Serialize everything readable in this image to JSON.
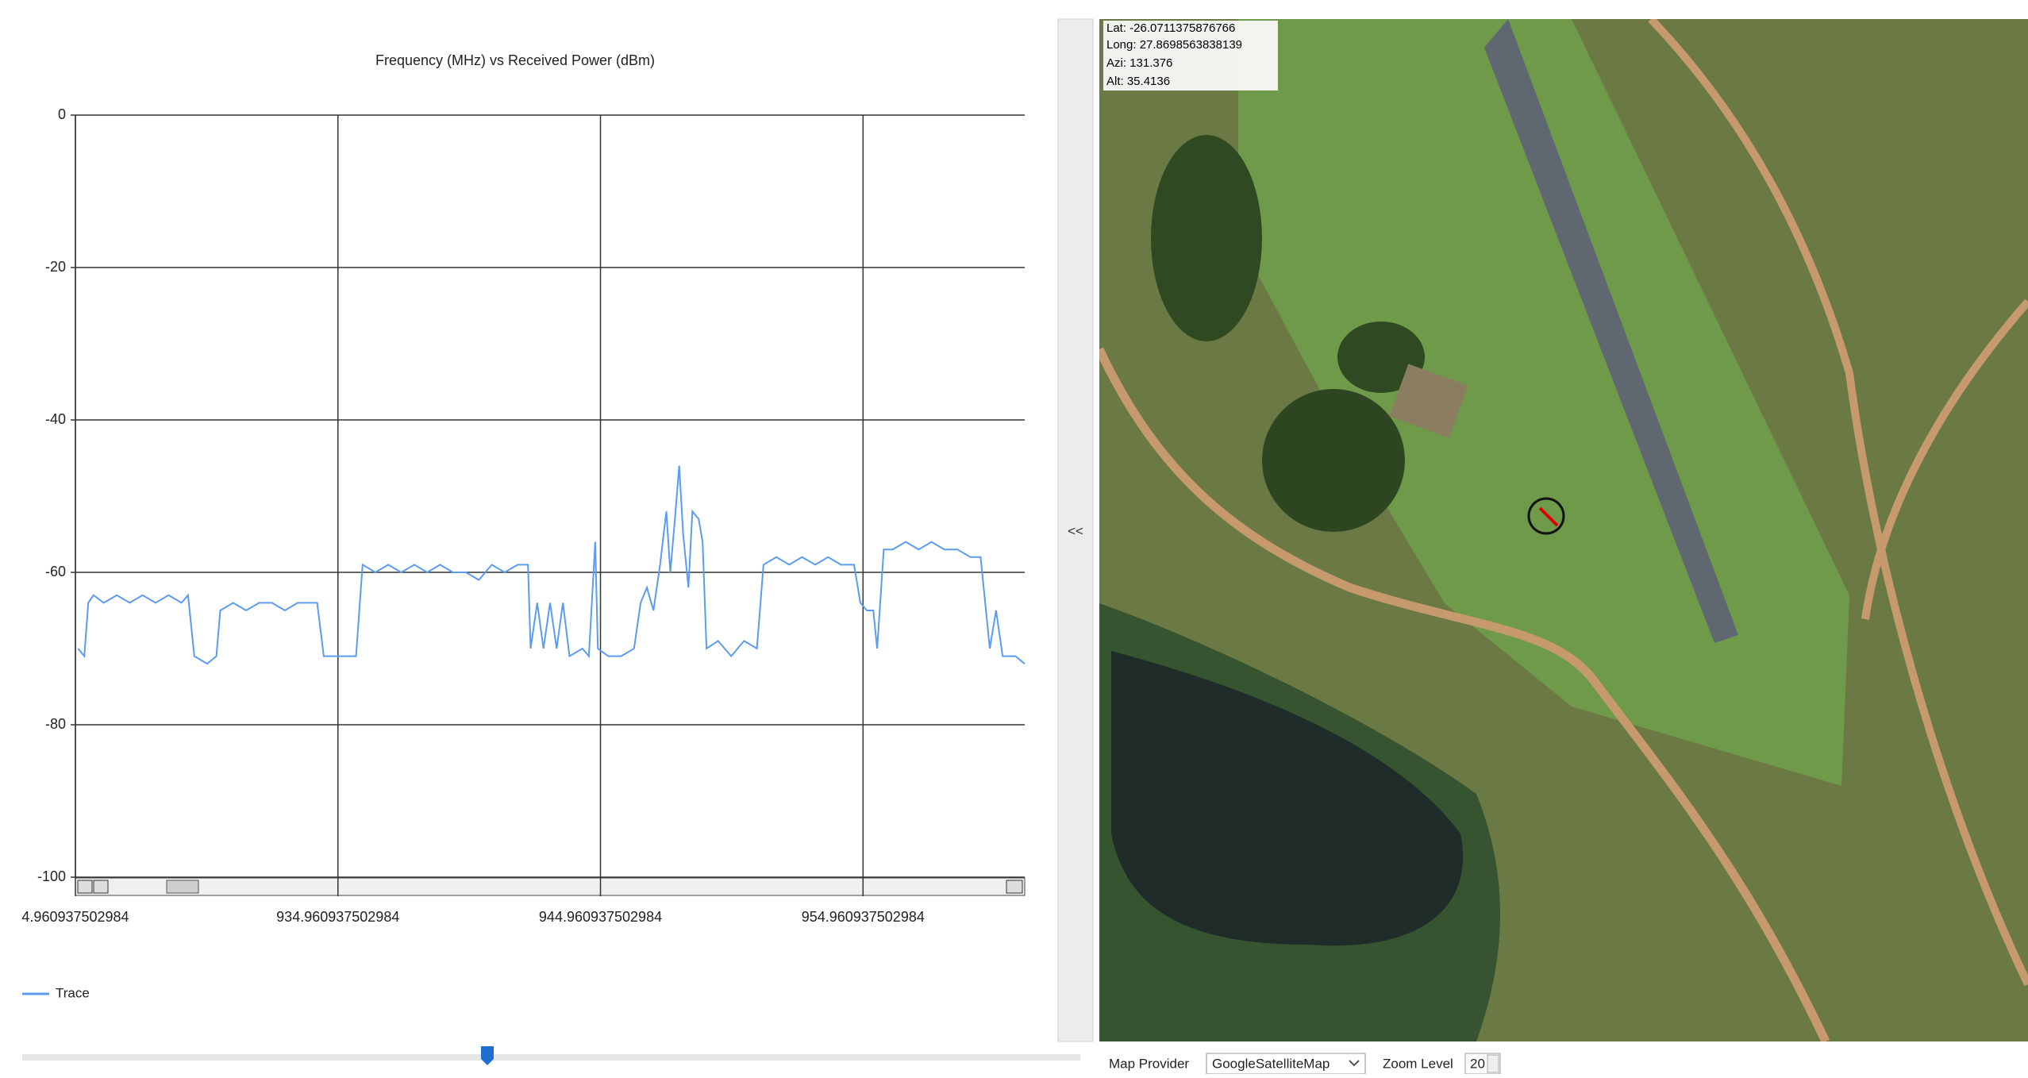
{
  "chart_data": {
    "type": "line",
    "title": "Frequency (MHz) vs Received Power (dBm)",
    "x": [
      925.06,
      925.3,
      925.45,
      925.65,
      926.04,
      926.54,
      927.03,
      927.52,
      928.01,
      928.51,
      929.0,
      929.25,
      929.49,
      929.98,
      930.33,
      930.48,
      930.97,
      931.46,
      931.96,
      932.45,
      932.94,
      933.43,
      934.17,
      934.42,
      934.91,
      935.65,
      935.9,
      936.39,
      936.88,
      937.37,
      937.87,
      938.36,
      938.85,
      939.34,
      939.84,
      940.33,
      940.82,
      941.31,
      941.81,
      942.2,
      942.3,
      942.55,
      942.79,
      943.04,
      943.29,
      943.53,
      943.78,
      944.27,
      944.52,
      944.76,
      944.86,
      945.26,
      945.75,
      946.24,
      946.49,
      946.73,
      946.98,
      947.23,
      947.47,
      947.62,
      947.82,
      947.96,
      948.11,
      948.31,
      948.46,
      948.7,
      948.85,
      949.0,
      949.44,
      949.94,
      950.43,
      950.92,
      951.17,
      951.66,
      952.15,
      952.64,
      953.14,
      953.63,
      954.12,
      954.62,
      954.86,
      955.11,
      955.35,
      955.5,
      955.75,
      956.09,
      956.59,
      957.08,
      957.57,
      958.06,
      958.56,
      959.05,
      959.44,
      959.79,
      960.03,
      960.28,
      960.77,
      961.12
    ],
    "series": [
      {
        "name": "Trace",
        "color": "#5b9bf0",
        "values": [
          -70,
          -71,
          -64,
          -63,
          -64,
          -63,
          -64,
          -63,
          -64,
          -63,
          -64,
          -63,
          -71,
          -72,
          -71,
          -65,
          -64,
          -65,
          -64,
          -64,
          -65,
          -64,
          -64,
          -71,
          -71,
          -71,
          -59,
          -60,
          -59,
          -60,
          -59,
          -60,
          -59,
          -60,
          -60,
          -61,
          -59,
          -60,
          -59,
          -59,
          -70,
          -64,
          -70,
          -64,
          -70,
          -64,
          -71,
          -70,
          -71,
          -56,
          -70,
          -71,
          -71,
          -70,
          -64,
          -62,
          -65,
          -59,
          -52,
          -60,
          -52,
          -46,
          -55,
          -62,
          -52,
          -53,
          -56,
          -70,
          -69,
          -71,
          -69,
          -70,
          -59,
          -58,
          -59,
          -58,
          -59,
          -58,
          -59,
          -59,
          -64,
          -65,
          -65,
          -70,
          -57,
          -57,
          -56,
          -57,
          -56,
          -57,
          -57,
          -58,
          -58,
          -70,
          -65,
          -71,
          -71,
          -72
        ]
      }
    ],
    "xlim": [
      924.960937502984,
      961.12
    ],
    "xticks": [
      {
        "value": 924.960937502984,
        "label": "4.960937502984"
      },
      934.960937502984,
      944.960937502984,
      954.960937502984
    ],
    "ylim": [
      -100,
      0
    ],
    "yticks": [
      0,
      -20,
      -40,
      -60,
      -80,
      -100
    ],
    "grid": true
  },
  "map": {
    "lat": "Lat: -26.0711375876766",
    "long": "Long: 27.8698563838139",
    "azi": "Azi: 131.376",
    "alt": "Alt: 35.4136"
  },
  "controls": {
    "collapse": "<<",
    "map_provider_label": "Map Provider",
    "map_provider": "GoogleSatelliteMap",
    "zoom_label": "Zoom Level",
    "zoom": "20"
  }
}
